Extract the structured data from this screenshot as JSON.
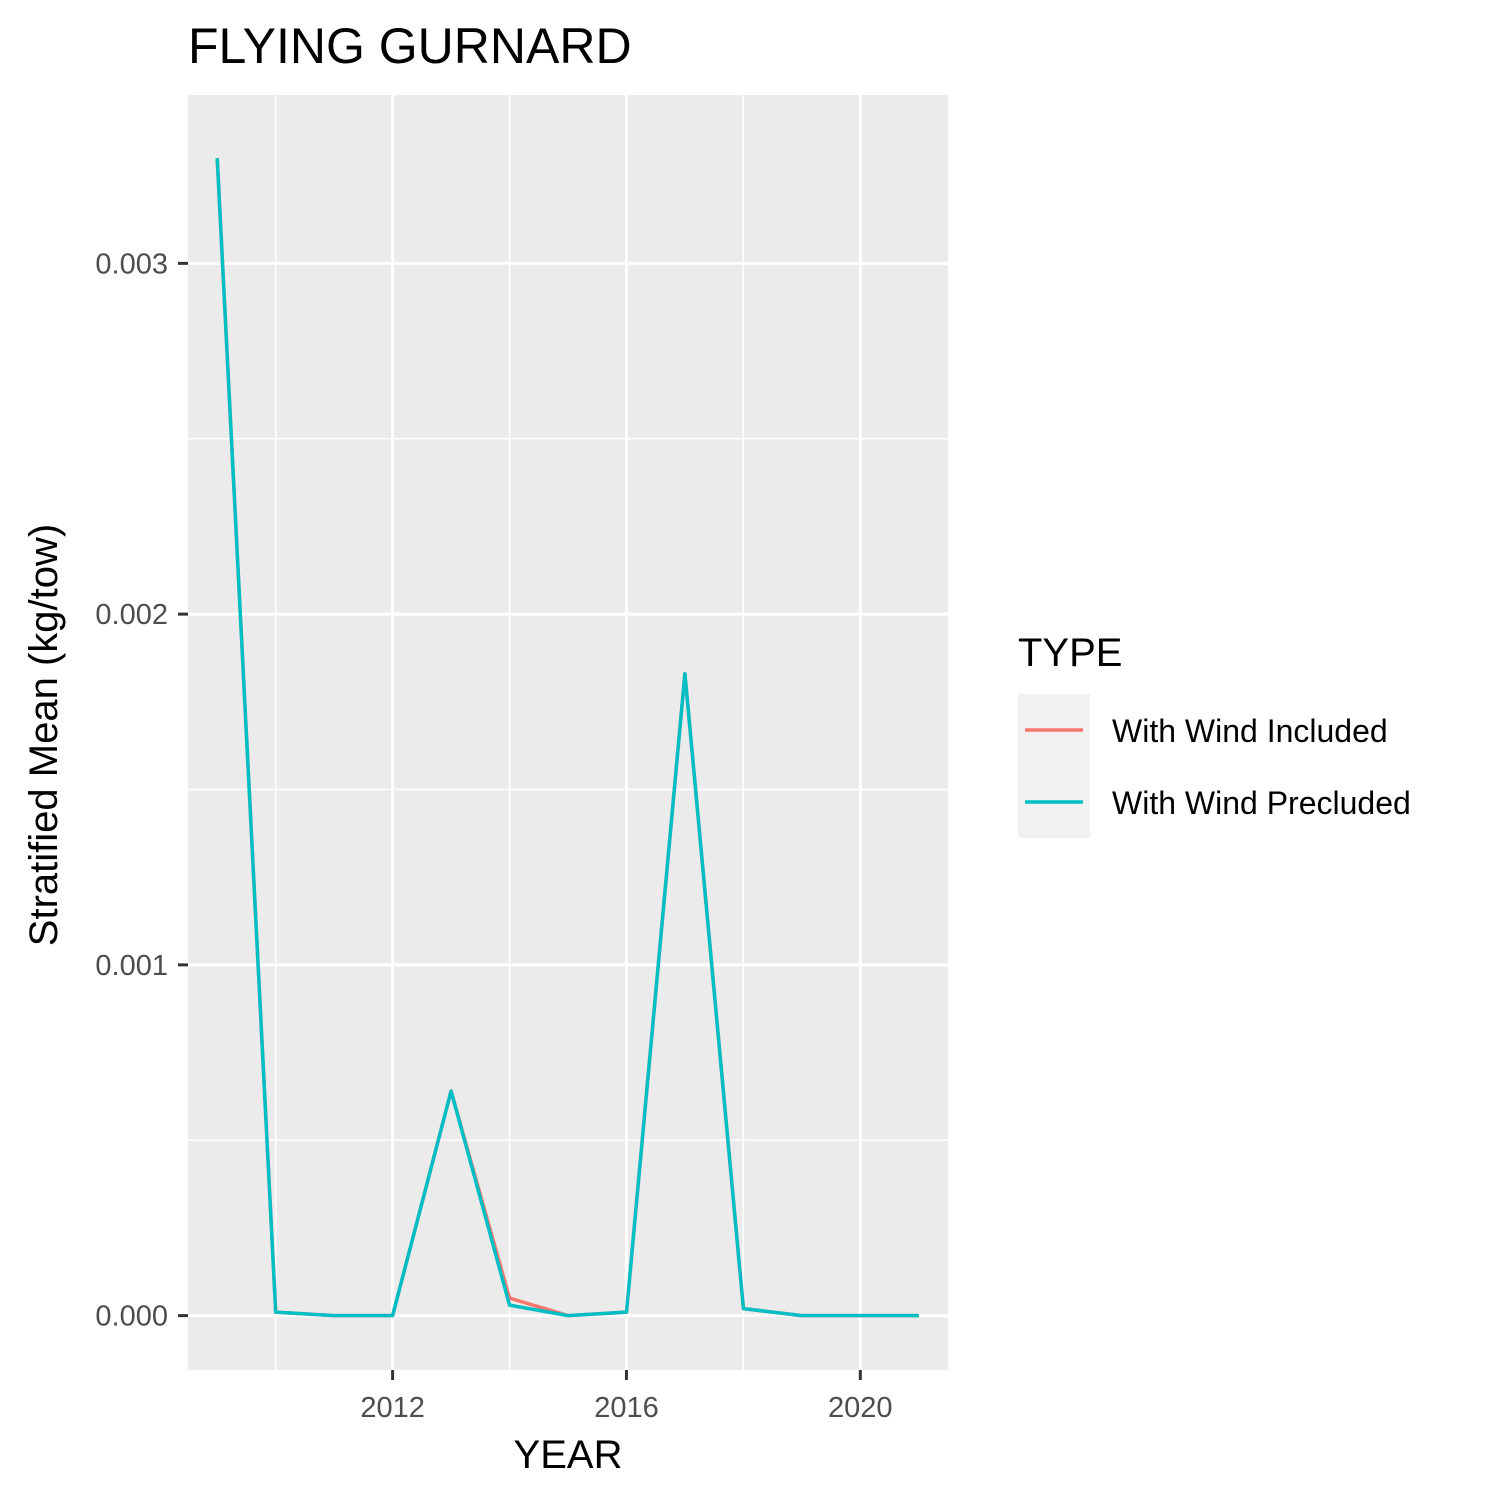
{
  "chart_data": {
    "type": "line",
    "title": "FLYING GURNARD",
    "xlabel": "YEAR",
    "ylabel": "Stratified Mean (kg/tow)",
    "xlim": [
      2008.5,
      2021.5
    ],
    "ylim": [
      -0.000155,
      0.00348
    ],
    "x_ticks": [
      2012,
      2016,
      2020
    ],
    "x_tick_labels": [
      "2012",
      "2016",
      "2020"
    ],
    "x_minor_ticks": [
      2010,
      2014,
      2018
    ],
    "y_ticks": [
      0,
      0.001,
      0.002,
      0.003
    ],
    "y_tick_labels": [
      "0.000",
      "0.001",
      "0.002",
      "0.003"
    ],
    "y_minor_ticks": [
      0.0005,
      0.0015,
      0.0025
    ],
    "grid": true,
    "panel_background": "#ebebeb",
    "x": [
      2009,
      2010,
      2011,
      2012,
      2013,
      2014,
      2015,
      2016,
      2017,
      2018,
      2019,
      2020,
      2021
    ],
    "series": [
      {
        "name": "With Wind Included",
        "color": "#f8766d",
        "values": [
          0.0033,
          1e-05,
          0.0,
          0.0,
          0.00064,
          5e-05,
          0.0,
          1e-05,
          0.00183,
          2e-05,
          0.0,
          0.0,
          0.0
        ]
      },
      {
        "name": "With Wind Precluded",
        "color": "#00bfc4",
        "values": [
          0.0033,
          1e-05,
          0.0,
          0.0,
          0.00064,
          3e-05,
          0.0,
          1e-05,
          0.00183,
          2e-05,
          0.0,
          0.0,
          0.0
        ]
      }
    ],
    "legend": {
      "title": "TYPE",
      "position": "right"
    }
  }
}
